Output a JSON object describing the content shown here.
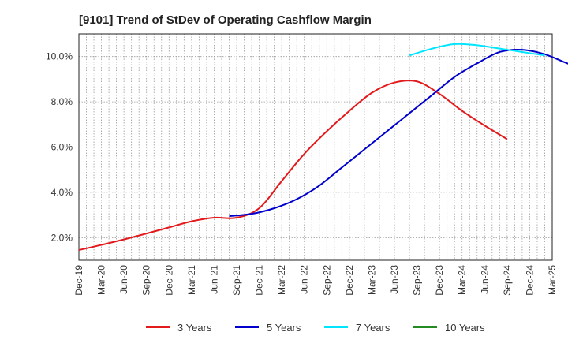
{
  "chart_data": {
    "type": "line",
    "title": "[9101]  Trend of StDev of Operating Cashflow Margin",
    "xlabel": "",
    "ylabel": "",
    "ylim": [
      1.0,
      11.0
    ],
    "y_ticks": [
      "2.0%",
      "4.0%",
      "6.0%",
      "8.0%",
      "10.0%"
    ],
    "y_tick_values": [
      2.0,
      4.0,
      6.0,
      8.0,
      10.0
    ],
    "x_ticks": [
      "Dec-19",
      "Mar-20",
      "Jun-20",
      "Sep-20",
      "Dec-20",
      "Mar-21",
      "Jun-21",
      "Sep-21",
      "Dec-21",
      "Mar-22",
      "Jun-22",
      "Sep-22",
      "Dec-22",
      "Mar-23",
      "Jun-23",
      "Sep-23",
      "Dec-23",
      "Mar-24",
      "Jun-24",
      "Sep-24",
      "Dec-24",
      "Mar-25"
    ],
    "grid": true,
    "legend_position": "bottom",
    "series": [
      {
        "name": "3 Years",
        "color": "#e31a1c",
        "start_index": 0,
        "values": [
          1.45,
          1.68,
          1.92,
          2.18,
          2.45,
          2.72,
          2.88,
          2.88,
          3.3,
          4.5,
          5.7,
          6.7,
          7.6,
          8.4,
          8.85,
          8.9,
          8.35,
          7.6,
          6.95,
          6.35
        ]
      },
      {
        "name": "5 Years",
        "color": "#0000cc",
        "start_index": 6.67,
        "values": [
          2.95,
          3.05,
          3.3,
          3.7,
          4.3,
          5.1,
          5.9,
          6.7,
          7.5,
          8.3,
          9.1,
          9.7,
          10.2,
          10.3,
          10.1,
          9.7,
          9.35,
          9.0
        ]
      },
      {
        "name": "7 Years",
        "color": "#00e5ff",
        "start_index": 14.67,
        "values": [
          10.05,
          10.35,
          10.55,
          10.5,
          10.35,
          10.2,
          10.05
        ]
      },
      {
        "name": "10 Years",
        "color": "#228b22",
        "start_index": 0,
        "values": []
      }
    ]
  }
}
